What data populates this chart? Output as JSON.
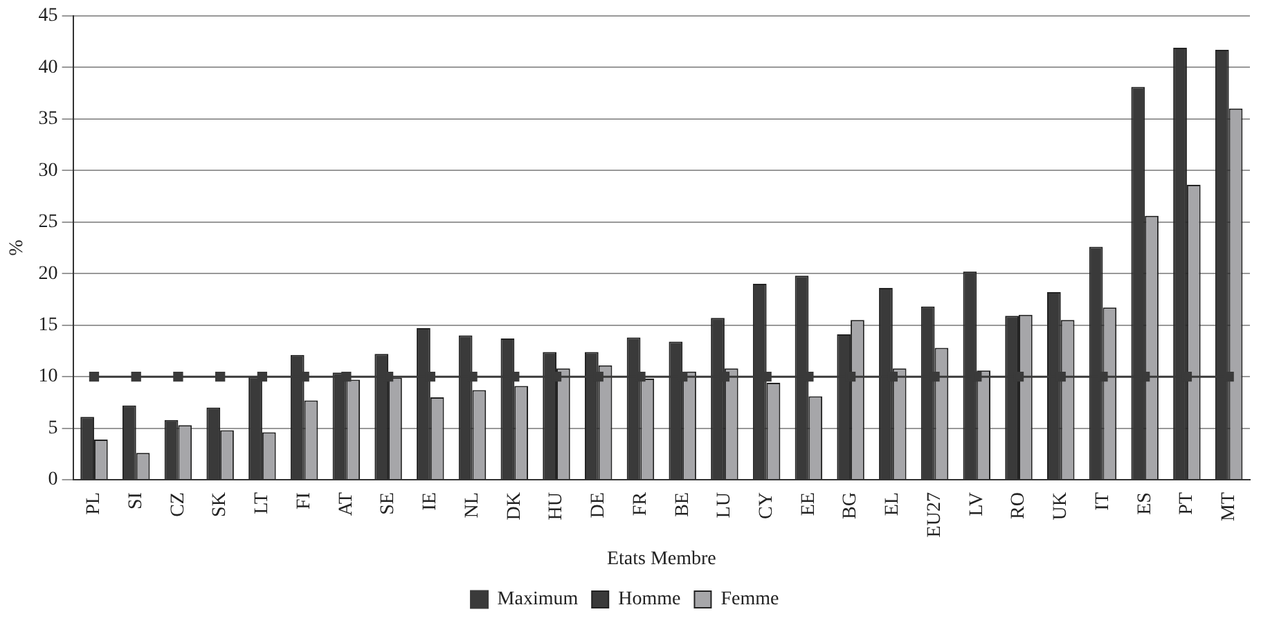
{
  "chart_data": {
    "type": "bar",
    "xlabel": "Etats Membre",
    "ylabel": "%",
    "categories": [
      "PL",
      "SI",
      "CZ",
      "SK",
      "LT",
      "FI",
      "AT",
      "SE",
      "IE",
      "NL",
      "DK",
      "HU",
      "DE",
      "FR",
      "BE",
      "LU",
      "CY",
      "EE",
      "BG",
      "EL",
      "EU27",
      "LV",
      "RO",
      "UK",
      "IT",
      "ES",
      "PT",
      "MT"
    ],
    "series": [
      {
        "name": "Homme",
        "color": "#3a3a3a",
        "values": [
          6.1,
          7.2,
          5.8,
          7.0,
          10.0,
          12.1,
          10.4,
          12.2,
          14.7,
          14.0,
          13.7,
          12.4,
          12.4,
          13.8,
          13.4,
          15.7,
          19.0,
          19.8,
          14.1,
          18.6,
          16.8,
          20.2,
          15.9,
          18.2,
          22.6,
          38.1,
          41.9,
          41.7
        ]
      },
      {
        "name": "Femme",
        "color": "#a6a6a9",
        "values": [
          3.9,
          2.6,
          5.3,
          4.8,
          4.6,
          7.7,
          9.7,
          9.9,
          8.0,
          8.7,
          9.1,
          10.8,
          11.1,
          9.8,
          10.5,
          10.8,
          9.4,
          8.1,
          15.5,
          10.8,
          12.8,
          10.6,
          16.0,
          15.5,
          16.7,
          25.6,
          28.6,
          36.0
        ]
      },
      {
        "name": "Maximum",
        "type": "line",
        "color": "#3a3a3a",
        "marker": "square",
        "values": [
          10,
          10,
          10,
          10,
          10,
          10,
          10,
          10,
          10,
          10,
          10,
          10,
          10,
          10,
          10,
          10,
          10,
          10,
          10,
          10,
          10,
          10,
          10,
          10,
          10,
          10,
          10,
          10
        ]
      }
    ],
    "ylim": [
      0,
      45
    ],
    "yticks": [
      0,
      5,
      10,
      15,
      20,
      25,
      30,
      35,
      40,
      45
    ],
    "grid": "y",
    "legend": "bottom"
  }
}
